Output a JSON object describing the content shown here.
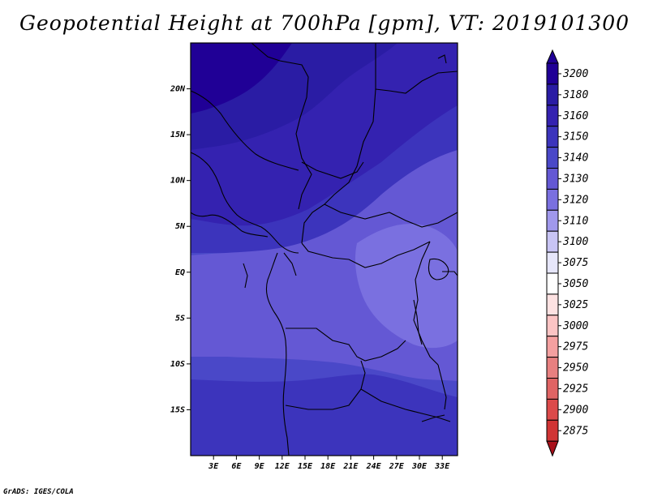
{
  "title": "Geopotential Height at 700hPa [gpm], VT: 2019101300",
  "credit": "GrADS: IGES/COLA",
  "map": {
    "lon_range": [
      0,
      35
    ],
    "lat_range": [
      -20,
      25
    ],
    "lat_ticks": [
      {
        "value": 20,
        "label": "20N"
      },
      {
        "value": 15,
        "label": "15N"
      },
      {
        "value": 10,
        "label": "10N"
      },
      {
        "value": 5,
        "label": "5N"
      },
      {
        "value": 0,
        "label": "EQ"
      },
      {
        "value": -5,
        "label": "5S"
      },
      {
        "value": -10,
        "label": "10S"
      },
      {
        "value": -15,
        "label": "15S"
      }
    ],
    "lon_ticks": [
      {
        "value": 3,
        "label": "3E"
      },
      {
        "value": 6,
        "label": "6E"
      },
      {
        "value": 9,
        "label": "9E"
      },
      {
        "value": 12,
        "label": "12E"
      },
      {
        "value": 15,
        "label": "15E"
      },
      {
        "value": 18,
        "label": "18E"
      },
      {
        "value": 21,
        "label": "21E"
      },
      {
        "value": 24,
        "label": "24E"
      },
      {
        "value": 27,
        "label": "27E"
      },
      {
        "value": 30,
        "label": "30E"
      },
      {
        "value": 33,
        "label": "33E"
      }
    ]
  },
  "colorbar": {
    "levels": [
      {
        "label": "3200",
        "color": "#200096"
      },
      {
        "label": "3180",
        "color": "#2a1ca4"
      },
      {
        "label": "3160",
        "color": "#3422b0"
      },
      {
        "label": "3150",
        "color": "#3c34bc"
      },
      {
        "label": "3140",
        "color": "#4a48c8"
      },
      {
        "label": "3130",
        "color": "#6458d4"
      },
      {
        "label": "3120",
        "color": "#7a70e0"
      },
      {
        "label": "3110",
        "color": "#a098ec"
      },
      {
        "label": "3100",
        "color": "#c8c4f4"
      },
      {
        "label": "3075",
        "color": "#e6e6fa"
      },
      {
        "label": "3050",
        "color": "#ffffff"
      },
      {
        "label": "3025",
        "color": "#fde2e2"
      },
      {
        "label": "3000",
        "color": "#fbc4c4"
      },
      {
        "label": "2975",
        "color": "#f4a0a0"
      },
      {
        "label": "2950",
        "color": "#e88080"
      },
      {
        "label": "2925",
        "color": "#e06464"
      },
      {
        "label": "2900",
        "color": "#dc4a4a"
      },
      {
        "label": "2875",
        "color": "#d03434"
      }
    ],
    "bottom_color": "#a8101a"
  }
}
